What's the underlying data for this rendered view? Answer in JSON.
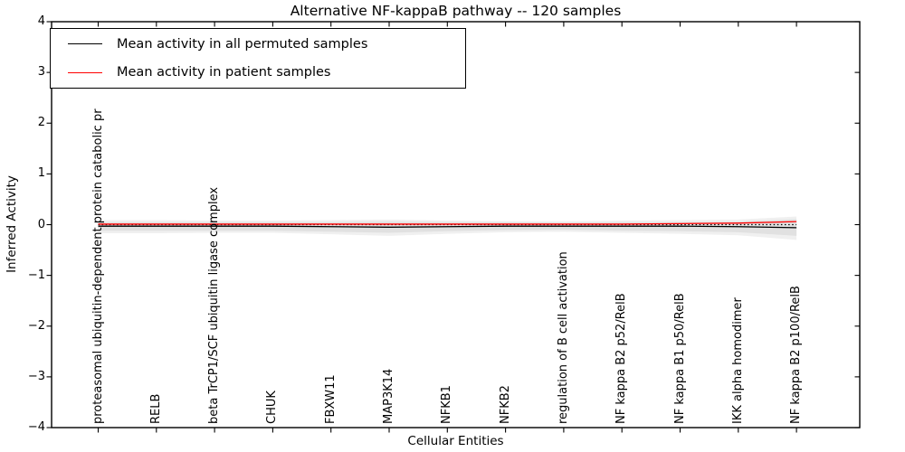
{
  "title": "Alternative NF-kappaB pathway -- 120 samples",
  "axes": {
    "xlabel": "Cellular Entities",
    "ylabel": "Inferred Activity",
    "yticks": [
      "4",
      "3",
      "2",
      "1",
      "0",
      "−1",
      "−2",
      "−3",
      "−4"
    ]
  },
  "legend": {
    "items": [
      {
        "label": "Mean activity in all permuted samples",
        "color": "#000000"
      },
      {
        "label": "Mean activity in patient samples",
        "color": "#ff0000"
      }
    ]
  },
  "chart_data": {
    "type": "line",
    "title": "Alternative NF-kappaB pathway -- 120 samples",
    "xlabel": "Cellular Entities",
    "ylabel": "Inferred Activity",
    "ylim": [
      -4,
      4
    ],
    "grid": false,
    "legend_position": "upper left",
    "categories": [
      "proteasomal ubiquitin-dependent protein catabolic pr",
      "RELB",
      "beta TrCP1/SCF ubiquitin ligase complex",
      "CHUK",
      "FBXW11",
      "MAP3K14",
      "NFKB1",
      "NFKB2",
      "regulation of B cell activation",
      "NF kappa B2 p52/RelB",
      "NF kappa B1 p50/RelB",
      "IKK alpha homodimer",
      "NF kappa B2 p100/RelB"
    ],
    "series": [
      {
        "name": "Mean activity in all permuted samples",
        "color": "#000000",
        "values": [
          -0.03,
          -0.03,
          -0.03,
          -0.03,
          -0.04,
          -0.05,
          -0.04,
          -0.03,
          -0.03,
          -0.03,
          -0.03,
          -0.04,
          -0.06
        ]
      },
      {
        "name": "Mean activity in patient samples",
        "color": "#ff0000",
        "values": [
          0.01,
          0.01,
          0.01,
          0.01,
          0.01,
          0.01,
          0.01,
          0.01,
          0.01,
          0.01,
          0.02,
          0.03,
          0.06
        ]
      }
    ],
    "uncertainty_bands": [
      {
        "name": "outer-band",
        "color": "#f0f0f0",
        "upper": [
          0.09,
          0.09,
          0.08,
          0.08,
          0.09,
          0.1,
          0.08,
          0.07,
          0.07,
          0.08,
          0.09,
          0.1,
          0.16
        ],
        "lower": [
          -0.17,
          -0.17,
          -0.16,
          -0.16,
          -0.19,
          -0.22,
          -0.18,
          -0.15,
          -0.14,
          -0.16,
          -0.18,
          -0.21,
          -0.3
        ]
      },
      {
        "name": "inner-band",
        "color": "#e1e1e1",
        "upper": [
          0.05,
          0.05,
          0.05,
          0.05,
          0.05,
          0.06,
          0.05,
          0.05,
          0.04,
          0.05,
          0.05,
          0.06,
          0.11
        ],
        "lower": [
          -0.12,
          -0.12,
          -0.12,
          -0.12,
          -0.14,
          -0.16,
          -0.13,
          -0.11,
          -0.1,
          -0.12,
          -0.13,
          -0.15,
          -0.22
        ]
      }
    ],
    "zero_line": {
      "value": 0,
      "style": "dotted",
      "color": "#000000"
    }
  }
}
